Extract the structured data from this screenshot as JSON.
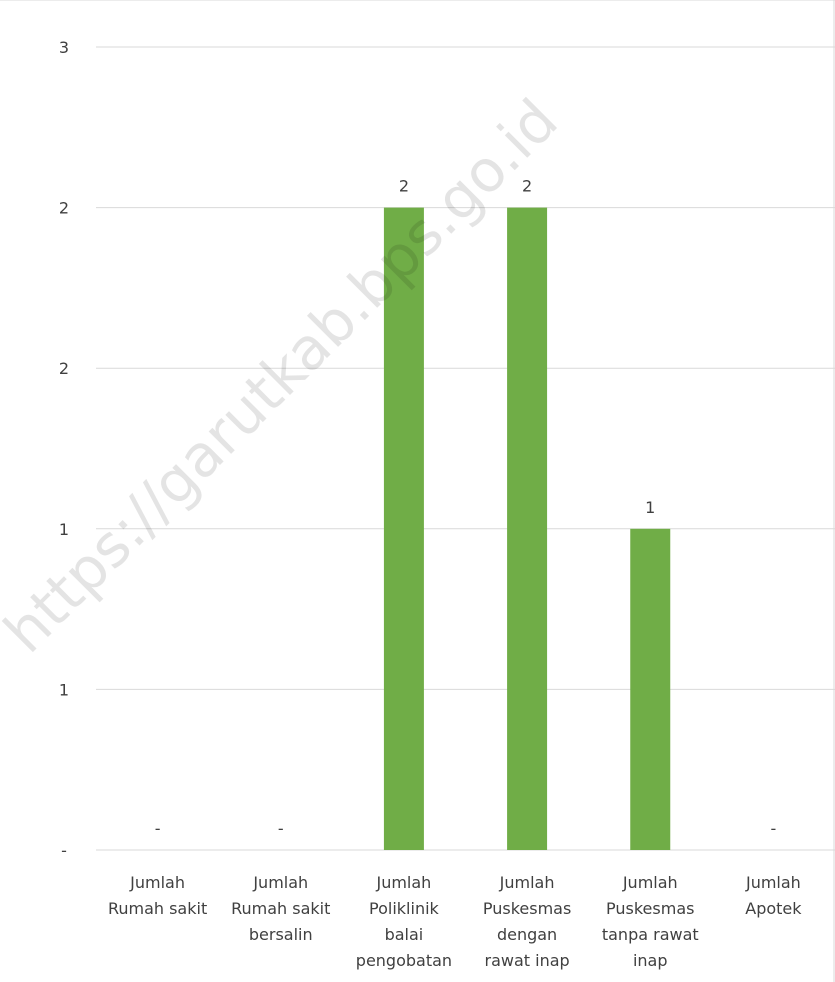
{
  "watermark": "https://garutkab.bps.go.id",
  "chart_data": {
    "type": "bar",
    "categories": [
      [
        "Jumlah",
        "Rumah sakit"
      ],
      [
        "Jumlah",
        "Rumah sakit",
        "bersalin"
      ],
      [
        "Jumlah",
        "Poliklinik",
        "balai",
        "pengobatan"
      ],
      [
        "Jumlah",
        "Puskesmas",
        "dengan",
        "rawat inap"
      ],
      [
        "Jumlah",
        "Puskesmas",
        "tanpa rawat",
        "inap"
      ],
      [
        "Jumlah",
        "Apotek"
      ]
    ],
    "values": [
      0,
      0,
      2,
      2,
      1,
      0
    ],
    "data_labels": [
      "-",
      "-",
      "2",
      "2",
      "1",
      "-"
    ],
    "y_ticks": [
      {
        "value": 0,
        "label": "-"
      },
      {
        "value": 0.5,
        "label": "1"
      },
      {
        "value": 1.0,
        "label": "1"
      },
      {
        "value": 1.5,
        "label": "2"
      },
      {
        "value": 2.0,
        "label": "2"
      },
      {
        "value": 2.5,
        "label": "3"
      }
    ],
    "ylim": [
      0,
      2.5
    ],
    "title": "",
    "xlabel": "",
    "ylabel": "",
    "grid": true,
    "bar_color": "#70ad47",
    "grid_color": "#d9d9d9"
  }
}
